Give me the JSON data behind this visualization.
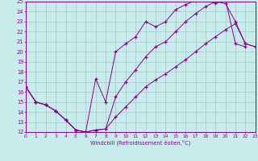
{
  "xlabel": "Windchill (Refroidissement éolien,°C)",
  "bg_color": "#c8ecec",
  "grid_color": "#a8cece",
  "line_color": "#880088",
  "xlim": [
    0,
    23
  ],
  "ylim": [
    12,
    25
  ],
  "xtick_vals": [
    0,
    1,
    2,
    3,
    4,
    5,
    6,
    7,
    8,
    9,
    10,
    11,
    12,
    13,
    14,
    15,
    16,
    17,
    18,
    19,
    20,
    21,
    22,
    23
  ],
  "ytick_vals": [
    12,
    13,
    14,
    15,
    16,
    17,
    18,
    19,
    20,
    21,
    22,
    23,
    24,
    25
  ],
  "curve1_x": [
    0,
    1,
    2,
    3,
    4,
    5,
    6,
    7,
    8,
    9,
    10,
    11,
    12,
    13,
    14,
    15,
    16,
    17,
    18,
    19,
    20,
    21,
    22
  ],
  "curve1_y": [
    16.5,
    15.0,
    14.7,
    14.1,
    13.2,
    12.2,
    12.0,
    17.3,
    15.0,
    20.0,
    20.8,
    21.5,
    23.0,
    22.5,
    23.0,
    24.2,
    24.7,
    25.1,
    25.2,
    24.8,
    25.2,
    20.8,
    20.5
  ],
  "curve2_x": [
    0,
    1,
    2,
    3,
    4,
    5,
    6,
    7,
    8,
    9,
    10,
    11,
    12,
    13,
    14,
    15,
    16,
    17,
    18,
    19,
    20,
    21,
    22,
    23
  ],
  "curve2_y": [
    16.5,
    15.0,
    14.7,
    14.1,
    13.2,
    12.2,
    12.0,
    12.2,
    12.3,
    15.5,
    17.0,
    18.2,
    19.5,
    20.5,
    21.0,
    22.0,
    23.0,
    23.8,
    24.5,
    25.0,
    24.8,
    23.0,
    20.8,
    20.5
  ],
  "curve3_x": [
    0,
    1,
    2,
    3,
    4,
    5,
    6,
    7,
    8,
    9,
    10,
    11,
    12,
    13,
    14,
    15,
    16,
    17,
    18,
    19,
    20,
    21,
    22,
    23
  ],
  "curve3_y": [
    16.5,
    15.0,
    14.7,
    14.1,
    13.2,
    12.2,
    12.0,
    12.2,
    12.3,
    13.5,
    14.5,
    15.5,
    16.5,
    17.2,
    17.8,
    18.5,
    19.2,
    20.0,
    20.8,
    21.5,
    22.2,
    22.8,
    20.8,
    20.5
  ]
}
